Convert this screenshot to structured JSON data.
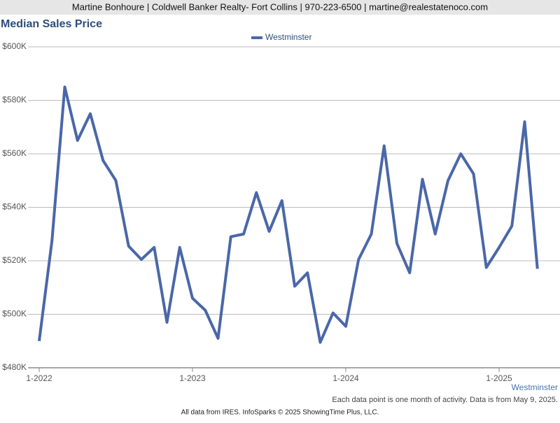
{
  "header": "Martine Bonhoure | Coldwell Banker Realty- Fort Collins | 970-223-6500 | martine@realestatenoco.com",
  "chart_data": {
    "type": "line",
    "title": "Median Sales Price",
    "categories": [
      "1-2022",
      null,
      null,
      null,
      null,
      null,
      null,
      null,
      null,
      null,
      null,
      null,
      "1-2023",
      null,
      null,
      null,
      null,
      null,
      null,
      null,
      null,
      null,
      null,
      null,
      "1-2024",
      null,
      null,
      null,
      null,
      null,
      null,
      null,
      null,
      null,
      null,
      null,
      "1-2025",
      null,
      null,
      null
    ],
    "series": [
      {
        "name": "Westminster",
        "color": "#4a67a8",
        "values": [
          490000,
          527500,
          585000,
          565000,
          575000,
          557500,
          550000,
          525500,
          520500,
          525000,
          497000,
          525000,
          506000,
          501500,
          491000,
          529000,
          530000,
          545500,
          531000,
          542500,
          510500,
          515500,
          489500,
          500500,
          495500,
          520500,
          530000,
          563000,
          526500,
          515500,
          550500,
          530000,
          550000,
          560000,
          552500,
          517500,
          525000,
          533000,
          572000,
          517000
        ]
      }
    ],
    "ylim": [
      480000,
      600000
    ],
    "yticks": [
      {
        "value": 480000,
        "label": "$480K"
      },
      {
        "value": 500000,
        "label": "$500K"
      },
      {
        "value": 520000,
        "label": "$520K"
      },
      {
        "value": 540000,
        "label": "$540K"
      },
      {
        "value": 560000,
        "label": "$560K"
      },
      {
        "value": 580000,
        "label": "$580K"
      },
      {
        "value": 600000,
        "label": "$600K"
      }
    ],
    "grid": true,
    "corner_label": "Westminster",
    "note": "Each data point is one month of activity. Data is from May 9, 2025."
  },
  "footer": "All data from IRES. InfoSparks © 2025 ShowingTime Plus, LLC."
}
